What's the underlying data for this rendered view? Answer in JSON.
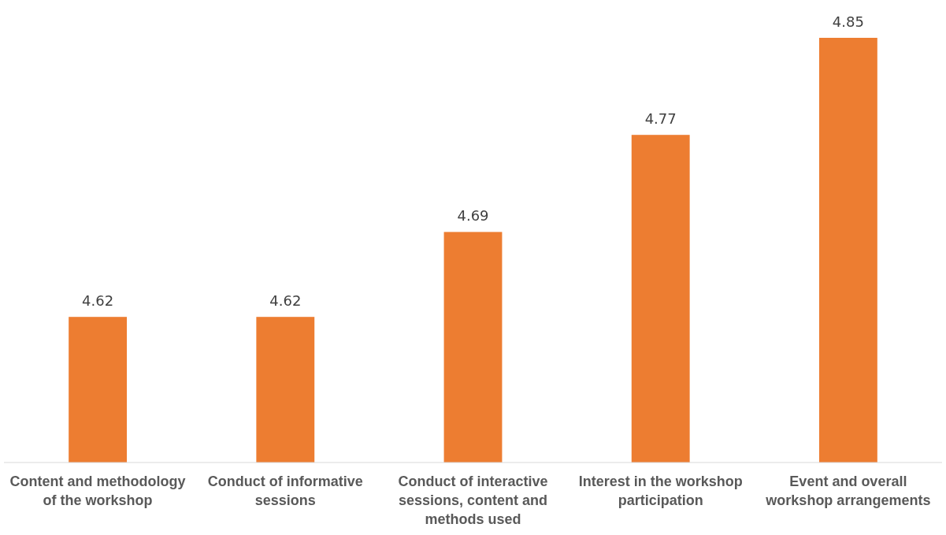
{
  "chart_data": {
    "type": "bar",
    "categories": [
      "Content and methodology of the workshop",
      "Conduct of informative sessions",
      "Conduct of interactive sessions, content and methods used",
      "Interest in the workshop participation",
      "Event and overall workshop arrangements"
    ],
    "values": [
      4.62,
      4.62,
      4.69,
      4.77,
      4.85
    ],
    "color": "#ed7d31",
    "ylim": [
      4.5,
      4.85
    ],
    "tick_labels": "x",
    "data_labels": true
  }
}
